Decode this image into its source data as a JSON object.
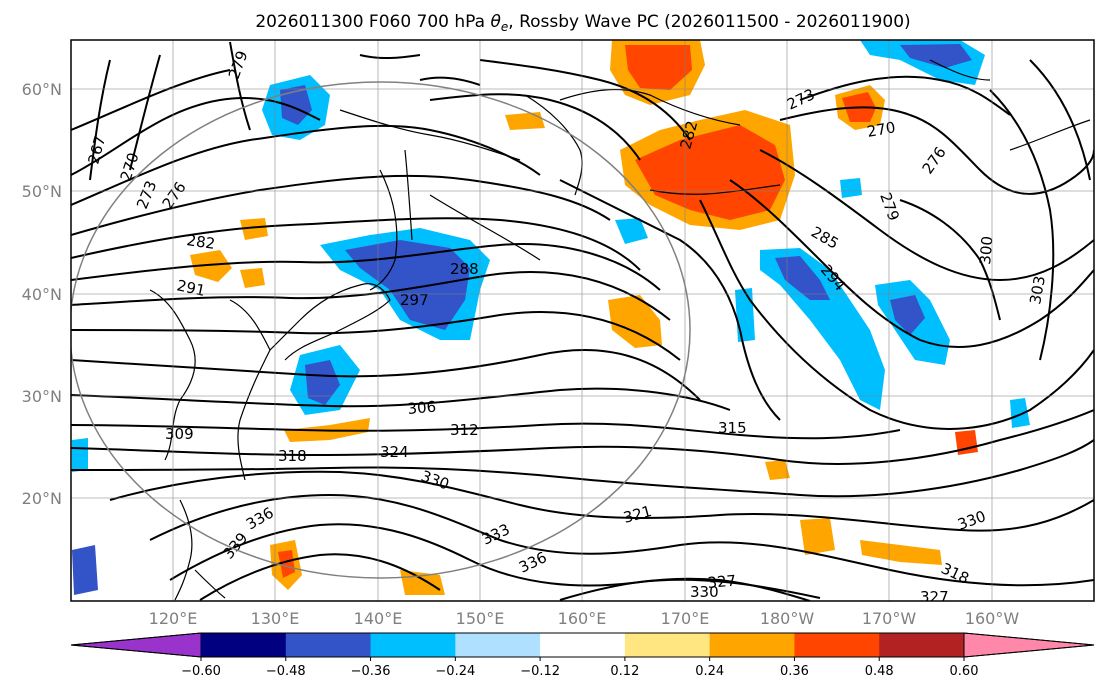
{
  "figure": {
    "title_prefix": "2026011300 F060 700 hPa ",
    "title_symbol": "θ",
    "title_subscript": "e",
    "title_suffix": ", Rossby Wave PC (2026011500 - 2026011900)"
  },
  "map": {
    "lat_labels": [
      "60°N",
      "50°N",
      "40°N",
      "30°N",
      "20°N"
    ],
    "lon_labels": [
      "120°E",
      "130°E",
      "140°E",
      "150°E",
      "160°E",
      "170°E",
      "180°W",
      "170°W",
      "160°W"
    ],
    "grid": true,
    "contour_color": "#000000",
    "coastline_color": "#000000",
    "contour_labels": [
      {
        "value": "279"
      },
      {
        "value": "267"
      },
      {
        "value": "270"
      },
      {
        "value": "273"
      },
      {
        "value": "276"
      },
      {
        "value": "282"
      },
      {
        "value": "291"
      },
      {
        "value": "288"
      },
      {
        "value": "297"
      },
      {
        "value": "306"
      },
      {
        "value": "312"
      },
      {
        "value": "309"
      },
      {
        "value": "318"
      },
      {
        "value": "324"
      },
      {
        "value": "330"
      },
      {
        "value": "336"
      },
      {
        "value": "339"
      },
      {
        "value": "321"
      },
      {
        "value": "333"
      },
      {
        "value": "336"
      },
      {
        "value": "327"
      },
      {
        "value": "330"
      },
      {
        "value": "315"
      },
      {
        "value": "282"
      },
      {
        "value": "273"
      },
      {
        "value": "270"
      },
      {
        "value": "276"
      },
      {
        "value": "279"
      },
      {
        "value": "285"
      },
      {
        "value": "294"
      },
      {
        "value": "300"
      },
      {
        "value": "303"
      },
      {
        "value": "330"
      },
      {
        "value": "318"
      },
      {
        "value": "327"
      }
    ]
  },
  "colorbar": {
    "ticks": [
      "−0.60",
      "−0.48",
      "−0.36",
      "−0.24",
      "−0.12",
      "0.12",
      "0.24",
      "0.36",
      "0.48",
      "0.60"
    ],
    "colors": [
      "#9933cc",
      "#000080",
      "#3353c8",
      "#00bfff",
      "#b0e0ff",
      "#ffffff",
      "#ffe680",
      "#ffa500",
      "#ff4500",
      "#b22222",
      "#ff88aa"
    ]
  }
}
